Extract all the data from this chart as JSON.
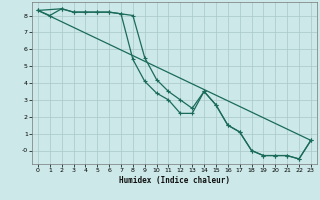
{
  "xlabel": "Humidex (Indice chaleur)",
  "background_color": "#cce8e8",
  "grid_color": "#aac8c8",
  "line_color": "#1a6b5a",
  "xlim": [
    -0.5,
    23.5
  ],
  "ylim": [
    -0.8,
    8.8
  ],
  "xticks": [
    0,
    1,
    2,
    3,
    4,
    5,
    6,
    7,
    8,
    9,
    10,
    11,
    12,
    13,
    14,
    15,
    16,
    17,
    18,
    19,
    20,
    21,
    22,
    23
  ],
  "yticks": [
    0,
    1,
    2,
    3,
    4,
    5,
    6,
    7,
    8
  ],
  "ytick_labels": [
    "-0",
    "1",
    "2",
    "3",
    "4",
    "5",
    "6",
    "7",
    "8"
  ],
  "series1_x": [
    0,
    1,
    2,
    3,
    4,
    5,
    6,
    7,
    8,
    9,
    10,
    11,
    12,
    13,
    14,
    15,
    16,
    17,
    18,
    19,
    20,
    21,
    22,
    23
  ],
  "series1_y": [
    8.3,
    8.0,
    8.4,
    8.2,
    8.2,
    8.2,
    8.2,
    8.1,
    8.0,
    5.5,
    4.2,
    3.5,
    3.0,
    2.5,
    3.5,
    2.7,
    1.5,
    1.1,
    0.0,
    -0.3,
    -0.3,
    -0.3,
    -0.5,
    0.6
  ],
  "series2_x": [
    0,
    2,
    3,
    4,
    5,
    6,
    7,
    8,
    9,
    10,
    11,
    12,
    13,
    14,
    15,
    16,
    17,
    18,
    19,
    20,
    21,
    22,
    23
  ],
  "series2_y": [
    8.3,
    8.4,
    8.2,
    8.2,
    8.2,
    8.2,
    8.1,
    5.4,
    4.1,
    3.4,
    3.0,
    2.2,
    2.2,
    3.5,
    2.7,
    1.5,
    1.1,
    0.0,
    -0.3,
    -0.3,
    -0.3,
    -0.5,
    0.6
  ],
  "series3_x": [
    0,
    23
  ],
  "series3_y": [
    8.3,
    0.6
  ]
}
